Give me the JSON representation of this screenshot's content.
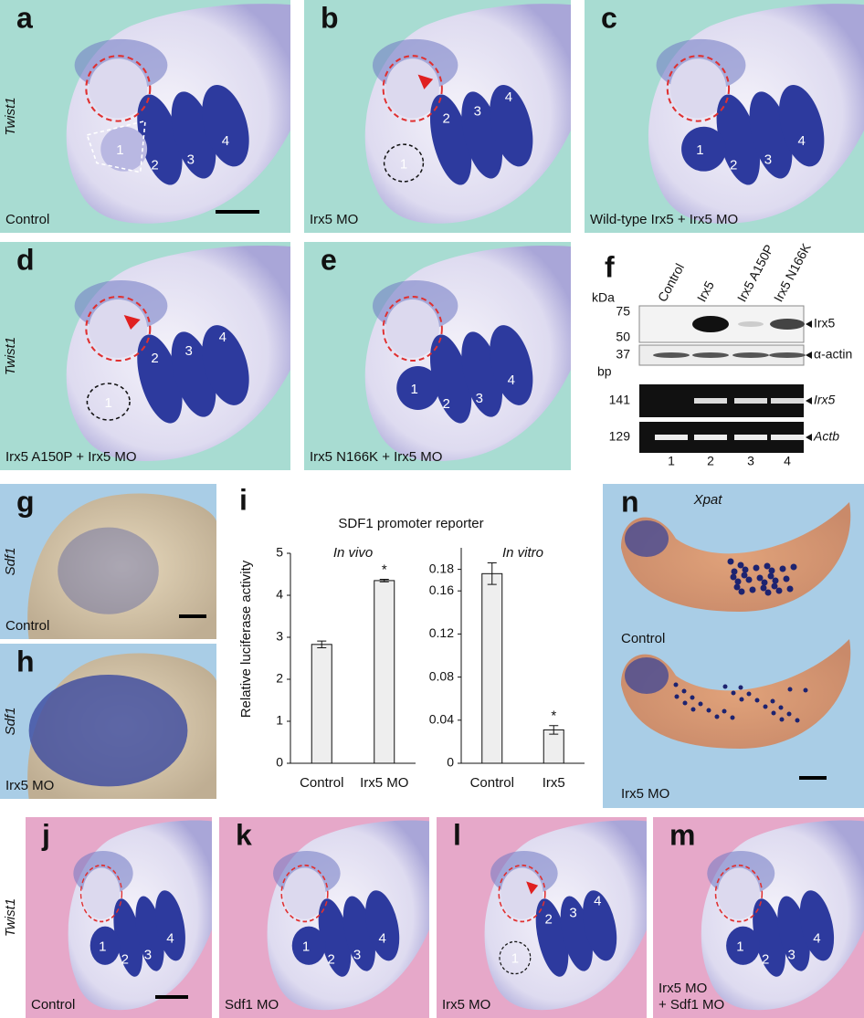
{
  "panels": {
    "a": {
      "letter": "a",
      "gene": "Twist1",
      "label": [
        "Control"
      ],
      "numbers": [
        "1",
        "2",
        "3",
        "4"
      ]
    },
    "b": {
      "letter": "b",
      "label": [
        "Irx5 MO"
      ],
      "numbers": [
        "1",
        "2",
        "3",
        "4"
      ]
    },
    "c": {
      "letter": "c",
      "label": [
        "Wild-type Irx5 + Irx5 MO"
      ],
      "numbers": [
        "1",
        "2",
        "3",
        "4"
      ]
    },
    "d": {
      "letter": "d",
      "gene": "Twist1",
      "label": [
        "Irx5 A150P + Irx5 MO"
      ],
      "numbers": [
        "1",
        "2",
        "3",
        "4"
      ]
    },
    "e": {
      "letter": "e",
      "label": [
        "Irx5 N166K + Irx5 MO"
      ],
      "numbers": [
        "1",
        "2",
        "3",
        "4"
      ]
    },
    "g": {
      "letter": "g",
      "gene": "Sdf1",
      "label": [
        "Control"
      ]
    },
    "h": {
      "letter": "h",
      "gene": "Sdf1",
      "label": [
        "Irx5 MO"
      ]
    },
    "j": {
      "letter": "j",
      "gene": "Twist1",
      "label": [
        "Control"
      ],
      "numbers": [
        "1",
        "2",
        "3",
        "4"
      ]
    },
    "k": {
      "letter": "k",
      "label": [
        "Sdf1 MO"
      ],
      "numbers": [
        "1",
        "2",
        "3",
        "4"
      ]
    },
    "l": {
      "letter": "l",
      "label": [
        "Irx5 MO"
      ],
      "numbers": [
        "1",
        "2",
        "3",
        "4"
      ]
    },
    "m": {
      "letter": "m",
      "label": [
        "Irx5 MO",
        "+ Sdf1 MO"
      ],
      "numbers": [
        "1",
        "2",
        "3",
        "4"
      ]
    }
  },
  "xpat": {
    "letter": "n",
    "gene": "Xpat",
    "labels": [
      "Control",
      "Irx5 MO"
    ]
  },
  "blot": {
    "letter": "f",
    "lanes": [
      "Control",
      "Irx5",
      "Irx5 A150P",
      "Irx5 N166K"
    ],
    "kda_unit": "kDa",
    "kda_markers": [
      "75",
      "50",
      "37"
    ],
    "bp_unit": "bp",
    "bp_markers": [
      "141",
      "129"
    ],
    "bands": [
      "Irx5",
      "α-actin",
      "Irx5",
      "Actb"
    ],
    "lane_numbers": [
      "1",
      "2",
      "3",
      "4"
    ]
  },
  "chart_letter": "i",
  "chart_data": [
    {
      "type": "bar",
      "title": "SDF1 promoter reporter",
      "y_label": "Relative luciferase activity",
      "subtitle": "In vivo",
      "categories": [
        "Control",
        "Irx5 MO"
      ],
      "values": [
        2.83,
        4.35
      ],
      "errors": [
        0.08,
        0.03
      ],
      "color": "#eeeeee",
      "ylim": [
        0,
        5
      ],
      "yticks": [
        0,
        1,
        2,
        3,
        4,
        5
      ],
      "annotations": [
        {
          "text": "*",
          "category": "Irx5 MO"
        }
      ]
    },
    {
      "type": "bar",
      "subtitle": "In vitro",
      "categories": [
        "Control",
        "Irx5"
      ],
      "values": [
        0.176,
        0.031
      ],
      "errors": [
        0.01,
        0.004
      ],
      "color": "#eeeeee",
      "ylim": [
        0,
        0.2
      ],
      "yticks": [
        0,
        0.04,
        0.08,
        0.12,
        0.16,
        0.18
      ],
      "annotations": [
        {
          "text": "*",
          "category": "Irx5"
        }
      ]
    }
  ]
}
